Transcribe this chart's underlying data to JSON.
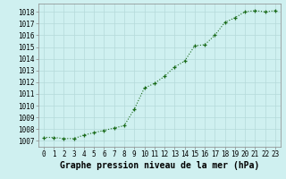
{
  "x": [
    0,
    1,
    2,
    3,
    4,
    5,
    6,
    7,
    8,
    9,
    10,
    11,
    12,
    13,
    14,
    15,
    16,
    17,
    18,
    19,
    20,
    21,
    22,
    23
  ],
  "y": [
    1007.3,
    1007.3,
    1007.2,
    1007.2,
    1007.5,
    1007.7,
    1007.9,
    1008.1,
    1008.3,
    1009.7,
    1011.5,
    1011.9,
    1012.5,
    1013.3,
    1013.8,
    1015.1,
    1015.2,
    1016.0,
    1017.1,
    1017.5,
    1018.0,
    1018.1,
    1018.0,
    1018.1
  ],
  "line_color": "#1a6b1a",
  "marker": "+",
  "background_color": "#cff0f0",
  "grid_color": "#b5dada",
  "xlabel": "Graphe pression niveau de la mer (hPa)",
  "xlabel_fontsize": 7,
  "ylabel_ticks": [
    1007,
    1008,
    1009,
    1010,
    1011,
    1012,
    1013,
    1014,
    1015,
    1016,
    1017,
    1018
  ],
  "ylim": [
    1006.5,
    1018.7
  ],
  "xlim": [
    -0.5,
    23.5
  ],
  "tick_fontsize": 5.5,
  "spine_color": "#888888"
}
